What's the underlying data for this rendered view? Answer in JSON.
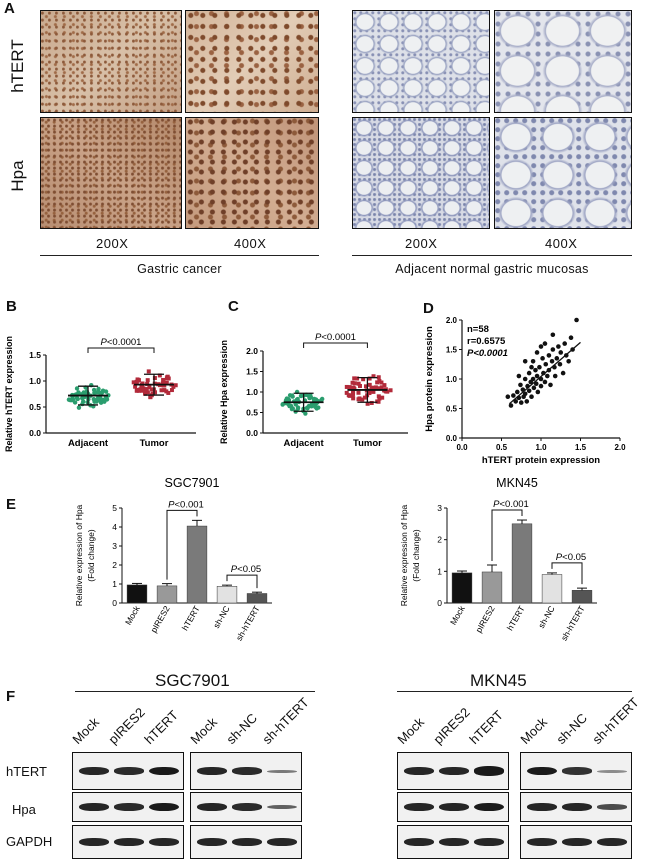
{
  "panelA": {
    "label": "A",
    "rows": [
      "hTERT",
      "Hpa"
    ],
    "magnifications": [
      "200X",
      "400X",
      "200X",
      "400X"
    ],
    "groups": [
      "Gastric cancer",
      "Adjacent normal gastric mucosas"
    ]
  },
  "panelB": {
    "label": "B",
    "ylabel": "Relative hTERT expression",
    "pvalue_p": "P",
    "pvalue_rest": "<0.0001",
    "chart_data": {
      "type": "scatter",
      "categories": [
        "Adjacent",
        "Tumor"
      ],
      "ylim": [
        0,
        1.5
      ],
      "yticks": [
        "0.0",
        "0.5",
        "1.0",
        "1.5"
      ],
      "series": [
        {
          "category": "Adjacent",
          "mean": 0.72,
          "sd": 0.18,
          "color": "#2a9d6e"
        },
        {
          "category": "Tumor",
          "mean": 0.93,
          "sd": 0.2,
          "color": "#b22a3a"
        }
      ]
    }
  },
  "panelC": {
    "label": "C",
    "ylabel": "Relative Hpa expression",
    "pvalue_p": "P",
    "pvalue_rest": "<0.0001",
    "chart_data": {
      "type": "scatter",
      "categories": [
        "Adjacent",
        "Tumor"
      ],
      "ylim": [
        0,
        2.0
      ],
      "yticks": [
        "0.0",
        "0.5",
        "1.0",
        "1.5",
        "2.0"
      ],
      "series": [
        {
          "category": "Adjacent",
          "mean": 0.75,
          "sd": 0.22,
          "color": "#2a9d6e"
        },
        {
          "category": "Tumor",
          "mean": 1.05,
          "sd": 0.3,
          "color": "#b22a3a"
        }
      ]
    }
  },
  "panelD": {
    "label": "D",
    "stats": [
      "n=58",
      "r=0.6575",
      "P<0.0001"
    ],
    "xlabel": "hTERT protein expression",
    "ylabel": "Hpa protein expression",
    "chart_data": {
      "type": "scatter",
      "xlim": [
        0,
        2.0
      ],
      "ylim": [
        0,
        2.0
      ],
      "xticks": [
        "0.0",
        "0.5",
        "1.0",
        "1.5",
        "2.0"
      ],
      "yticks": [
        "0.0",
        "0.5",
        "1.0",
        "1.5",
        "2.0"
      ],
      "points": [
        [
          0.62,
          0.55
        ],
        [
          0.65,
          0.72
        ],
        [
          0.68,
          0.62
        ],
        [
          0.7,
          0.78
        ],
        [
          0.72,
          0.68
        ],
        [
          0.74,
          0.9
        ],
        [
          0.75,
          0.6
        ],
        [
          0.77,
          0.82
        ],
        [
          0.78,
          0.7
        ],
        [
          0.8,
          1.0
        ],
        [
          0.8,
          0.75
        ],
        [
          0.82,
          0.62
        ],
        [
          0.83,
          0.88
        ],
        [
          0.85,
          1.1
        ],
        [
          0.85,
          0.8
        ],
        [
          0.87,
          0.95
        ],
        [
          0.88,
          0.7
        ],
        [
          0.9,
          1.3
        ],
        [
          0.9,
          1.0
        ],
        [
          0.91,
          0.85
        ],
        [
          0.93,
          1.15
        ],
        [
          0.94,
          0.92
        ],
        [
          0.95,
          1.05
        ],
        [
          0.96,
          0.78
        ],
        [
          0.98,
          1.2
        ],
        [
          1.0,
          1.0
        ],
        [
          1.0,
          0.88
        ],
        [
          1.02,
          1.35
        ],
        [
          1.03,
          1.1
        ],
        [
          1.05,
          0.95
        ],
        [
          1.06,
          1.25
        ],
        [
          1.08,
          1.05
        ],
        [
          1.1,
          1.4
        ],
        [
          1.1,
          1.15
        ],
        [
          1.12,
          0.9
        ],
        [
          1.14,
          1.3
        ],
        [
          1.15,
          1.5
        ],
        [
          1.17,
          1.2
        ],
        [
          1.18,
          1.05
        ],
        [
          1.2,
          1.35
        ],
        [
          1.22,
          1.55
        ],
        [
          1.24,
          1.25
        ],
        [
          1.25,
          1.45
        ],
        [
          1.28,
          1.1
        ],
        [
          1.3,
          1.6
        ],
        [
          1.32,
          1.4
        ],
        [
          1.35,
          1.3
        ],
        [
          1.38,
          1.7
        ],
        [
          1.4,
          1.5
        ],
        [
          1.45,
          2.0
        ],
        [
          0.58,
          0.7
        ],
        [
          0.95,
          1.45
        ],
        [
          1.05,
          1.6
        ],
        [
          0.72,
          1.05
        ],
        [
          0.88,
          1.2
        ],
        [
          1.0,
          1.55
        ],
        [
          1.15,
          1.75
        ],
        [
          0.8,
          1.3
        ]
      ],
      "fit": [
        [
          0.6,
          0.58
        ],
        [
          1.5,
          1.62
        ]
      ]
    }
  },
  "panelE": {
    "label": "E",
    "ylabel_line1": "Relative expression of Hpa",
    "ylabel_line2": "(Fold change)",
    "charts": [
      {
        "title": "SGC7901",
        "chart_data": {
          "type": "bar",
          "categories": [
            "Mock",
            "pIRES2",
            "hTERT",
            "sh-NC",
            "sh-hTERT"
          ],
          "values": [
            0.95,
            0.9,
            4.05,
            0.88,
            0.5
          ],
          "errors": [
            0.08,
            0.12,
            0.3,
            0.06,
            0.07
          ],
          "ylim": [
            0,
            5
          ],
          "yticks": [
            "0",
            "1",
            "2",
            "3",
            "4",
            "5"
          ],
          "colors": [
            "#111111",
            "#999999",
            "#7a7a7a",
            "#e2e2e2",
            "#555555"
          ],
          "sig": [
            {
              "from": 1,
              "to": 2,
              "p": "P",
              "rest": "<0.001"
            },
            {
              "from": 3,
              "to": 4,
              "p": "P",
              "rest": "<0.05"
            }
          ]
        }
      },
      {
        "title": "MKN45",
        "chart_data": {
          "type": "bar",
          "categories": [
            "Mock",
            "pIRES2",
            "hTERT",
            "sh-NC",
            "sh-hTERT"
          ],
          "values": [
            0.95,
            0.98,
            2.5,
            0.9,
            0.4
          ],
          "errors": [
            0.06,
            0.22,
            0.12,
            0.05,
            0.07
          ],
          "ylim": [
            0,
            3
          ],
          "yticks": [
            "0",
            "1",
            "2",
            "3"
          ],
          "colors": [
            "#111111",
            "#999999",
            "#7a7a7a",
            "#e2e2e2",
            "#555555"
          ],
          "sig": [
            {
              "from": 1,
              "to": 2,
              "p": "P",
              "rest": "<0.001"
            },
            {
              "from": 3,
              "to": 4,
              "p": "P",
              "rest": "<0.05"
            }
          ]
        }
      }
    ]
  },
  "panelF": {
    "label": "F",
    "cells": [
      "SGC7901",
      "MKN45"
    ],
    "lanes_set1": [
      "Mock",
      "pIRES2",
      "hTERT"
    ],
    "lanes_set2": [
      "Mock",
      "sh-NC",
      "sh-hTERT"
    ],
    "proteins": [
      "hTERT",
      "Hpa",
      "GAPDH"
    ],
    "band_levels": {
      "SGC7901_over": [
        [
          1,
          0.95,
          1.1
        ],
        [
          1,
          0.95,
          1.1
        ],
        [
          1,
          1,
          1
        ]
      ],
      "SGC7901_sh": [
        [
          1,
          0.95,
          0.35
        ],
        [
          1,
          0.95,
          0.55
        ],
        [
          1,
          1,
          1
        ]
      ],
      "MKN45_over": [
        [
          1,
          1,
          1.15
        ],
        [
          1,
          1,
          1.1
        ],
        [
          1,
          1,
          1
        ]
      ],
      "MKN45_sh": [
        [
          1.1,
          0.9,
          0.2
        ],
        [
          1,
          1,
          0.7
        ],
        [
          1,
          1,
          1
        ]
      ]
    }
  }
}
